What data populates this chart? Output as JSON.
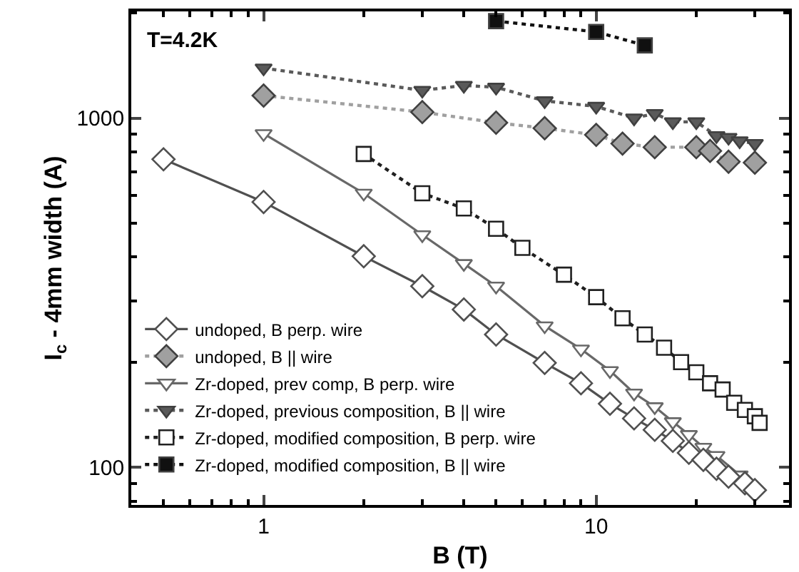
{
  "chart_data": {
    "type": "line",
    "xlabel": "B (T)",
    "ylabel": "I$_{c}$ - 4mm width (A)",
    "log": "xy",
    "legend": "bottom left",
    "annotations": [
      "T=4.2K"
    ],
    "xlim": [
      0.4,
      38
    ],
    "ylim": [
      78,
      2020
    ],
    "xticks": [
      {
        "value": 0.4,
        "label": null
      },
      {
        "value": 0.5,
        "label": null
      },
      {
        "value": 0.6,
        "label": null
      },
      {
        "value": 0.7,
        "label": null
      },
      {
        "value": 0.8,
        "label": null
      },
      {
        "value": 0.9,
        "label": null
      },
      1,
      {
        "value": 2,
        "label": null
      },
      {
        "value": 3,
        "label": null
      },
      {
        "value": 4,
        "label": null
      },
      {
        "value": 5,
        "label": null
      },
      {
        "value": 6,
        "label": null
      },
      {
        "value": 7,
        "label": null
      },
      {
        "value": 8,
        "label": null
      },
      {
        "value": 9,
        "label": null
      },
      10,
      {
        "value": 20,
        "label": null
      },
      {
        "value": 30,
        "label": null
      }
    ],
    "yticks": [
      {
        "value": 80,
        "label": null
      },
      {
        "value": 90,
        "label": null
      },
      100,
      {
        "value": 200,
        "label": null
      },
      {
        "value": 300,
        "label": null
      },
      {
        "value": 400,
        "label": null
      },
      {
        "value": 500,
        "label": null
      },
      {
        "value": 600,
        "label": null
      },
      {
        "value": 700,
        "label": null
      },
      {
        "value": 800,
        "label": null
      },
      {
        "value": 900,
        "label": null
      },
      1000,
      {
        "value": 2000,
        "label": null
      }
    ],
    "series": [
      {
        "name": "undoped, B perp. wire",
        "color": "#505050",
        "marker": "diamond-open",
        "line_style": "solid",
        "x": [
          0.5,
          1,
          2,
          3,
          4,
          5,
          7,
          9,
          11,
          13,
          15,
          17,
          19,
          21,
          23,
          25,
          28,
          30
        ],
        "values": [
          762,
          575,
          402,
          330,
          283,
          240,
          199,
          174,
          152,
          138,
          128,
          119,
          110,
          105,
          99,
          94,
          90,
          86
        ]
      },
      {
        "name": "undoped, B || wire",
        "color": "#a0a0a0",
        "marker": "diamond",
        "line_style": "dotted",
        "x": [
          1,
          3,
          5,
          7,
          10,
          12,
          15,
          20,
          22,
          25,
          30
        ],
        "values": [
          1160,
          1040,
          970,
          935,
          895,
          845,
          825,
          825,
          805,
          750,
          745
        ]
      },
      {
        "name": "Zr-doped, prev comp, B perp. wire",
        "color": "#686868",
        "marker": "triangle-open",
        "line_style": "solid",
        "x": [
          1,
          2,
          3,
          4,
          5,
          7,
          9,
          11,
          13,
          15,
          17,
          19,
          21,
          23,
          27
        ],
        "values": [
          902,
          609,
          463,
          383,
          330,
          254,
          218,
          189,
          163,
          149,
          135,
          124,
          114,
          108,
          95
        ]
      },
      {
        "name": "Zr-doped, previous composition, B || wire",
        "color": "#5a5a5a",
        "marker": "triangle",
        "line_style": "dotted",
        "x": [
          1,
          3,
          4,
          5,
          7,
          10,
          13,
          15,
          17,
          20,
          23,
          25,
          27,
          30
        ],
        "values": [
          1390,
          1200,
          1240,
          1225,
          1120,
          1080,
          1000,
          1030,
          975,
          975,
          890,
          880,
          860,
          845
        ]
      },
      {
        "name": "Zr-doped, modified composition, B perp. wire",
        "color": "#202020",
        "marker": "square-open",
        "line_style": "dotted",
        "x": [
          2,
          3,
          4,
          5,
          6,
          8,
          10,
          12,
          14,
          16,
          18,
          20,
          22,
          24,
          26,
          28,
          30,
          31
        ],
        "values": [
          789,
          609,
          551,
          482,
          425,
          356,
          307,
          267,
          240,
          220,
          200,
          187,
          174,
          167,
          153,
          146,
          140,
          134
        ]
      },
      {
        "name": "Zr-doped, modified composition, B || wire",
        "color": "#101010",
        "marker": "square",
        "line_style": "dotted",
        "x": [
          5,
          10,
          14
        ],
        "values": [
          1895,
          1765,
          1615
        ]
      }
    ]
  }
}
